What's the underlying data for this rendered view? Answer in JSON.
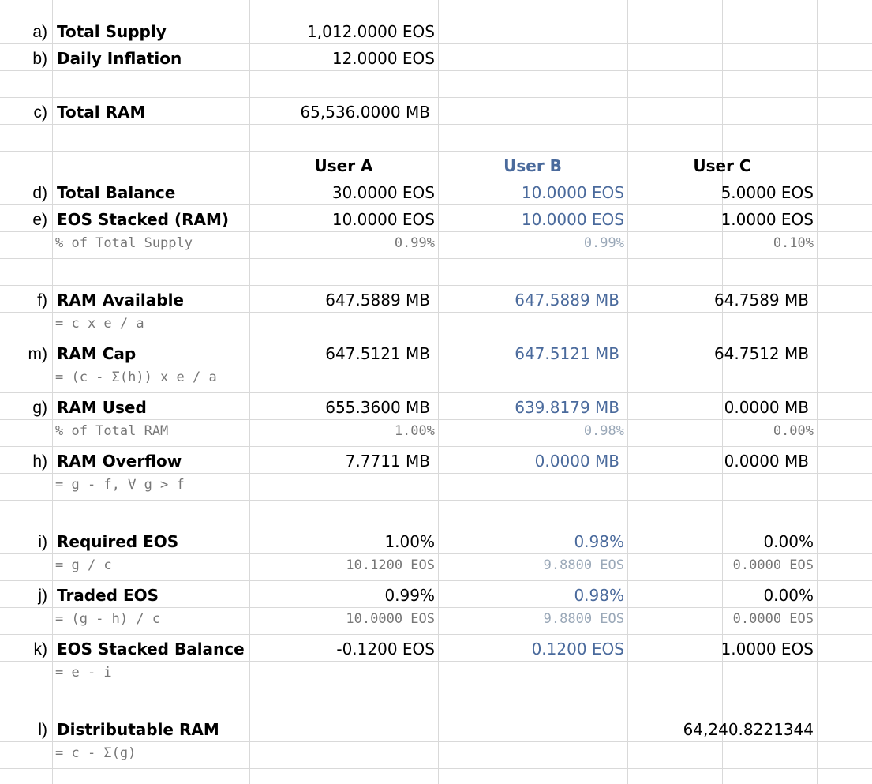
{
  "rows": {
    "a": {
      "label": "a)",
      "name": "Total Supply",
      "value": "1,012.0000 EOS"
    },
    "b": {
      "label": "b)",
      "name": "Daily Inflation",
      "value": "12.0000 EOS"
    },
    "c": {
      "label": "c)",
      "name": "Total RAM",
      "value": "65,536.0000 MB"
    },
    "users": {
      "a": "User A",
      "b": "User B",
      "c": "User C"
    },
    "d": {
      "label": "d)",
      "name": "Total Balance",
      "a": "30.0000 EOS",
      "b": "10.0000 EOS",
      "c": "5.0000 EOS"
    },
    "e": {
      "label": "e)",
      "name": "EOS Stacked (RAM)",
      "a": "10.0000 EOS",
      "b": "10.0000 EOS",
      "c": "1.0000 EOS",
      "sub": "% of Total Supply",
      "sa": "0.99%",
      "sb": "0.99%",
      "sc": "0.10%"
    },
    "f": {
      "label": "f)",
      "name": "RAM Available",
      "a": "647.5889 MB",
      "b": "647.5889 MB",
      "c": "64.7589 MB",
      "sub": "= c x e / a"
    },
    "m": {
      "label": "m)",
      "name": "RAM Cap",
      "a": "647.5121 MB",
      "b": "647.5121 MB",
      "c": "64.7512 MB",
      "sub": "= (c - Σ(h)) x e / a"
    },
    "g": {
      "label": "g)",
      "name": "RAM Used",
      "a": "655.3600 MB",
      "b": "639.8179 MB",
      "c": "0.0000 MB",
      "sub": "% of Total RAM",
      "sa": "1.00%",
      "sb": "0.98%",
      "sc": "0.00%"
    },
    "h": {
      "label": "h)",
      "name": "RAM Overflow",
      "a": "7.7711 MB",
      "b": "0.0000 MB",
      "c": "0.0000 MB",
      "sub": "= g - f, ∀ g > f"
    },
    "i": {
      "label": "i)",
      "name": "Required EOS",
      "a": "1.00%",
      "b": "0.98%",
      "c": "0.00%",
      "sub": "= g / c",
      "sa": "10.1200 EOS",
      "sb": "9.8800 EOS",
      "sc": "0.0000 EOS"
    },
    "j": {
      "label": "j)",
      "name": "Traded EOS",
      "a": "0.99%",
      "b": "0.98%",
      "c": "0.00%",
      "sub": "= (g - h) / c",
      "sa": "10.0000 EOS",
      "sb": "9.8800 EOS",
      "sc": "0.0000 EOS"
    },
    "k": {
      "label": "k)",
      "name": "EOS Stacked Balance",
      "a": "-0.1200 EOS",
      "b": "0.1200 EOS",
      "c": "1.0000 EOS",
      "sub": "= e - i"
    },
    "l": {
      "label": "l)",
      "name": "Distributable RAM",
      "c": "64,240.8221344",
      "sub": "= c - Σ(g)"
    }
  }
}
